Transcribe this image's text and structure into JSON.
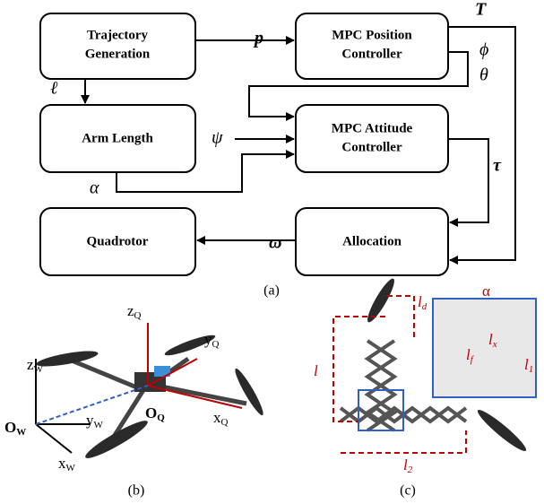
{
  "panel_a": {
    "blocks": [
      {
        "lines": [
          "Trajectory",
          "Generation"
        ]
      },
      {
        "lines": [
          "MPC Position",
          "Controller"
        ]
      },
      {
        "lines": [
          "Arm Length"
        ]
      },
      {
        "lines": [
          "MPC Attitude",
          "Controller"
        ]
      },
      {
        "lines": [
          "Quadrotor"
        ]
      },
      {
        "lines": [
          "Allocation"
        ]
      }
    ],
    "signals": {
      "p": "p",
      "T": "T",
      "phi": "ϕ",
      "theta": "θ",
      "ell": "ℓ",
      "psi": "ψ",
      "alpha": "α",
      "tau": "τ",
      "omega": "ω"
    },
    "caption": "(a)"
  },
  "panel_b": {
    "labels": [
      {
        "base": "z",
        "sub": "Q"
      },
      {
        "base": "y",
        "sub": "Q"
      },
      {
        "base": "x",
        "sub": "Q"
      },
      {
        "base": "O",
        "sub": "Q"
      },
      {
        "base": "O",
        "sub": "W"
      },
      {
        "base": "z",
        "sub": "W"
      },
      {
        "base": "y",
        "sub": "W"
      },
      {
        "base": "x",
        "sub": "W"
      }
    ],
    "caption": "(b)"
  },
  "panel_c": {
    "labels": [
      {
        "base": "α",
        "sub": ""
      },
      {
        "base": "l",
        "sub": "d"
      },
      {
        "base": "l",
        "sub": ""
      },
      {
        "base": "l",
        "sub": "f"
      },
      {
        "base": "l",
        "sub": "x"
      },
      {
        "base": "l",
        "sub": "1"
      },
      {
        "base": "l",
        "sub": "2"
      }
    ],
    "caption": "(c)"
  }
}
